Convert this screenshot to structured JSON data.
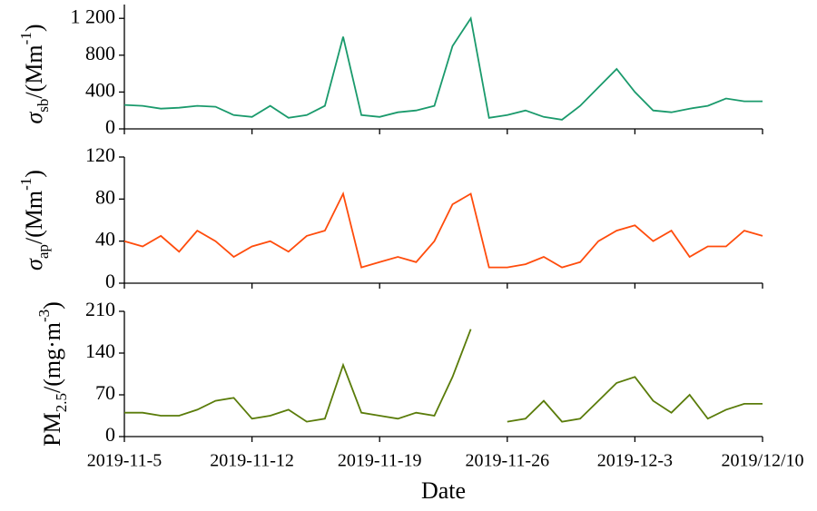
{
  "chart_data": [
    {
      "type": "line",
      "ylabel": [
        "σ",
        "sb",
        "/(Mm",
        "-1",
        ")"
      ],
      "ylabel_styles": [
        "italic",
        "sub",
        "normal",
        "sup",
        "normal"
      ],
      "ylim": [
        0,
        1350
      ],
      "yticks": [
        0,
        400,
        800,
        {
          "value": 1200,
          "label": "1 200"
        }
      ],
      "x": [
        "2019-11-5",
        "2019-11-6",
        "2019-11-7",
        "2019-11-8",
        "2019-11-9",
        "2019-11-10",
        "2019-11-11",
        "2019-11-12",
        "2019-11-13",
        "2019-11-14",
        "2019-11-15",
        "2019-11-16",
        "2019-11-17",
        "2019-11-18",
        "2019-11-19",
        "2019-11-20",
        "2019-11-21",
        "2019-11-22",
        "2019-11-23",
        "2019-11-24",
        "2019-11-25",
        "2019-11-26",
        "2019-11-27",
        "2019-11-28",
        "2019-11-29",
        "2019-11-30",
        "2019-12-1",
        "2019-12-2",
        "2019-12-3",
        "2019-12-4",
        "2019-12-5",
        "2019-12-6",
        "2019-12-7",
        "2019-12-8",
        "2019-12-9",
        "2019-12-10"
      ],
      "series": [
        {
          "color": "#1a9a6c",
          "values": [
            260,
            250,
            220,
            230,
            250,
            240,
            150,
            130,
            250,
            120,
            150,
            250,
            1000,
            150,
            130,
            180,
            200,
            250,
            900,
            1200,
            120,
            150,
            200,
            130,
            100,
            250,
            450,
            650,
            400,
            200,
            180,
            220,
            250,
            330,
            300,
            300
          ]
        }
      ]
    },
    {
      "type": "line",
      "ylabel": [
        "σ",
        "ap",
        "/(Mm",
        "-1",
        ")"
      ],
      "ylabel_styles": [
        "italic",
        "sub",
        "normal",
        "sup",
        "normal"
      ],
      "ylim": [
        0,
        120
      ],
      "yticks": [
        0,
        40,
        80,
        120
      ],
      "x": [
        "2019-11-5",
        "2019-11-6",
        "2019-11-7",
        "2019-11-8",
        "2019-11-9",
        "2019-11-10",
        "2019-11-11",
        "2019-11-12",
        "2019-11-13",
        "2019-11-14",
        "2019-11-15",
        "2019-11-16",
        "2019-11-17",
        "2019-11-18",
        "2019-11-19",
        "2019-11-20",
        "2019-11-21",
        "2019-11-22",
        "2019-11-23",
        "2019-11-24",
        "2019-11-25",
        "2019-11-26",
        "2019-11-27",
        "2019-11-28",
        "2019-11-29",
        "2019-11-30",
        "2019-12-1",
        "2019-12-2",
        "2019-12-3",
        "2019-12-4",
        "2019-12-5",
        "2019-12-6",
        "2019-12-7",
        "2019-12-8",
        "2019-12-9",
        "2019-12-10"
      ],
      "series": [
        {
          "color": "#ff4c0c",
          "values": [
            40,
            35,
            45,
            30,
            50,
            40,
            25,
            35,
            40,
            30,
            45,
            50,
            85,
            15,
            20,
            25,
            20,
            40,
            75,
            85,
            15,
            15,
            18,
            25,
            15,
            20,
            40,
            50,
            55,
            40,
            50,
            25,
            35,
            35,
            50,
            45
          ]
        }
      ]
    },
    {
      "type": "line",
      "ylabel": [
        "PM",
        "2.5",
        "/(mg·m",
        "-3",
        ")"
      ],
      "ylabel_styles": [
        "normal",
        "sub",
        "normal",
        "sup",
        "normal"
      ],
      "ylim": [
        0,
        210
      ],
      "yticks": [
        0,
        70,
        140,
        210
      ],
      "xlabel": "Date",
      "xticks": [
        "2019-11-5",
        "2019-11-12",
        "2019-11-19",
        "2019-11-26",
        "2019-12-3",
        {
          "value": "2019-12-10",
          "label": "2019/12/10"
        }
      ],
      "x": [
        "2019-11-5",
        "2019-11-6",
        "2019-11-7",
        "2019-11-8",
        "2019-11-9",
        "2019-11-10",
        "2019-11-11",
        "2019-11-12",
        "2019-11-13",
        "2019-11-14",
        "2019-11-15",
        "2019-11-16",
        "2019-11-17",
        "2019-11-18",
        "2019-11-19",
        "2019-11-20",
        "2019-11-21",
        "2019-11-22",
        "2019-11-23",
        "2019-11-24",
        "2019-11-25",
        "2019-11-26",
        "2019-11-27",
        "2019-11-28",
        "2019-11-29",
        "2019-11-30",
        "2019-12-1",
        "2019-12-2",
        "2019-12-3",
        "2019-12-4",
        "2019-12-5",
        "2019-12-6",
        "2019-12-7",
        "2019-12-8",
        "2019-12-9",
        "2019-12-10"
      ],
      "series": [
        {
          "color": "#5a7c0a",
          "values": [
            40,
            40,
            35,
            35,
            45,
            60,
            65,
            30,
            35,
            45,
            25,
            30,
            120,
            40,
            35,
            30,
            40,
            35,
            100,
            180,
            null,
            25,
            30,
            60,
            25,
            30,
            60,
            90,
            100,
            60,
            40,
            70,
            30,
            45,
            55,
            55
          ]
        }
      ]
    }
  ]
}
